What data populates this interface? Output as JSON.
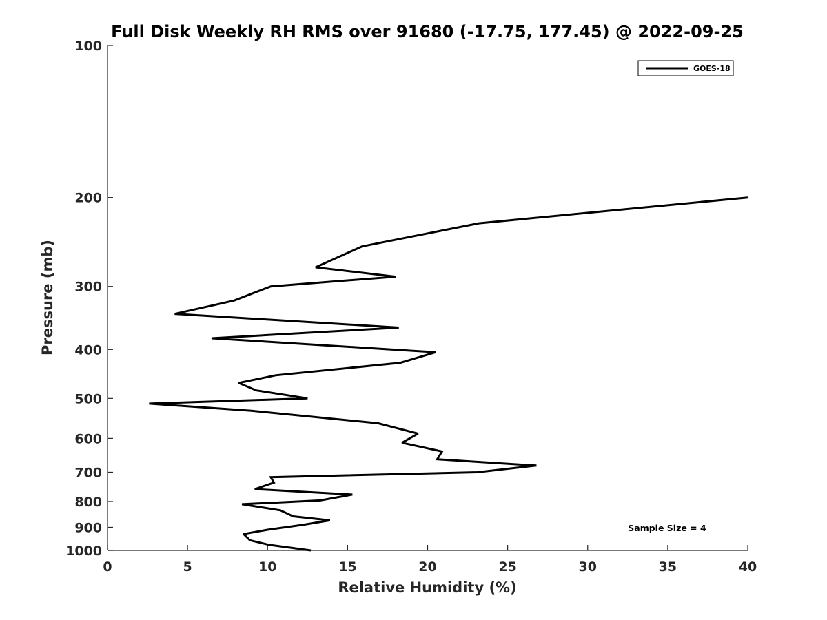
{
  "chart_data": {
    "type": "line",
    "title": "Full Disk Weekly RH RMS over 91680 (-17.75, 177.45) @ 2022-09-25",
    "xlabel": "Relative Humidity (%)",
    "ylabel": "Pressure (mb)",
    "xlim": [
      0,
      40
    ],
    "ylim": [
      100,
      1000
    ],
    "y_scale": "log",
    "y_reversed": true,
    "x_ticks": [
      0,
      5,
      10,
      15,
      20,
      25,
      30,
      35,
      40
    ],
    "y_ticks": [
      100,
      200,
      300,
      400,
      500,
      600,
      700,
      800,
      900,
      1000
    ],
    "grid": false,
    "legend_position": "top-right",
    "annotation": "Sample Size = 4",
    "series": [
      {
        "name": "GOES-18",
        "color": "#000000",
        "points": [
          [
            40.0,
            200
          ],
          [
            23.2,
            225
          ],
          [
            15.9,
            250
          ],
          [
            13.0,
            275
          ],
          [
            18.0,
            287
          ],
          [
            10.2,
            300
          ],
          [
            7.9,
            320
          ],
          [
            4.2,
            340
          ],
          [
            18.2,
            362
          ],
          [
            6.5,
            380
          ],
          [
            20.5,
            405
          ],
          [
            18.3,
            425
          ],
          [
            10.5,
            450
          ],
          [
            8.2,
            466
          ],
          [
            9.3,
            482
          ],
          [
            12.5,
            500
          ],
          [
            2.6,
            512
          ],
          [
            9.0,
            529
          ],
          [
            16.9,
            560
          ],
          [
            19.4,
            587
          ],
          [
            18.4,
            612
          ],
          [
            20.9,
            637
          ],
          [
            20.6,
            660
          ],
          [
            26.8,
            679
          ],
          [
            23.1,
            700
          ],
          [
            10.2,
            716
          ],
          [
            10.4,
            734
          ],
          [
            9.2,
            756
          ],
          [
            15.3,
            775
          ],
          [
            13.3,
            796
          ],
          [
            8.4,
            810
          ],
          [
            10.8,
            833
          ],
          [
            11.6,
            856
          ],
          [
            13.9,
            872
          ],
          [
            12.2,
            890
          ],
          [
            10.0,
            910
          ],
          [
            8.5,
            928
          ],
          [
            8.9,
            955
          ],
          [
            10.1,
            975
          ],
          [
            12.7,
            1000
          ]
        ]
      }
    ]
  }
}
